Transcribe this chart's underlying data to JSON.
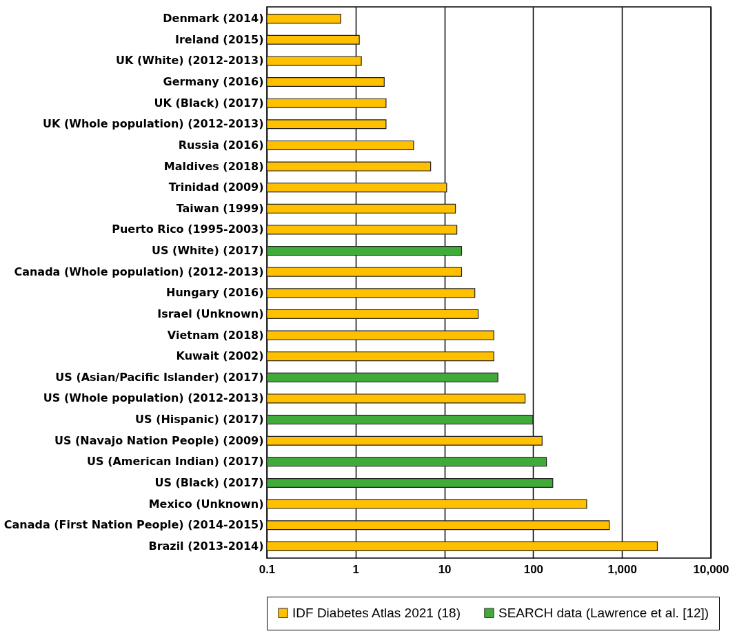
{
  "chart_data": {
    "type": "bar",
    "orientation": "horizontal",
    "log": "x",
    "grid": "x",
    "legend": "bottom",
    "categories": [
      "Denmark (2014)",
      "Ireland (2015)",
      "UK (White) (2012-2013)",
      "Germany (2016)",
      "UK (Black) (2017)",
      "UK (Whole population) (2012-2013)",
      "Russia (2016)",
      "Maldives (2018)",
      "Trinidad (2009)",
      "Taiwan (1999)",
      "Puerto Rico (1995-2003)",
      "US (White) (2017)",
      "Canada (Whole population) (2012-2013)",
      "Hungary (2016)",
      "Israel (Unknown)",
      "Vietnam (2018)",
      "Kuwait (2002)",
      "US (Asian/Pacific Islander) (2017)",
      "US (Whole population) (2012-2013)",
      "US (Hispanic) (2017)",
      "US (Navajo Nation People) (2009)",
      "US (American Indian) (2017)",
      "US (Black) (2017)",
      "Mexico (Unknown)",
      "Canada (First Nation People) (2014-2015)",
      "Brazil (2013-2014)"
    ],
    "series": [
      {
        "name": "IDF Diabetes Atlas 2021 (18)",
        "color": "#ffc000",
        "values": [
          0.68,
          1.1,
          1.16,
          2.1,
          2.2,
          2.2,
          4.5,
          7.0,
          10.6,
          13.3,
          13.8,
          null,
          15.6,
          22,
          24,
          36,
          36,
          null,
          81,
          null,
          126,
          null,
          null,
          400,
          720,
          2500
        ]
      },
      {
        "name": "SEARCH data (Lawrence et al. [12])",
        "color": "#41ab3a",
        "values": [
          null,
          null,
          null,
          null,
          null,
          null,
          null,
          null,
          null,
          null,
          null,
          15.6,
          null,
          null,
          null,
          null,
          null,
          40,
          null,
          99,
          null,
          141,
          166,
          null,
          null,
          null
        ]
      }
    ],
    "xlim": [
      0.1,
      10000
    ],
    "xticks": [
      0.1,
      1,
      10,
      100,
      {
        "value": 1000,
        "label": "1,000"
      },
      {
        "value": 10000,
        "label": "10,000"
      }
    ]
  }
}
